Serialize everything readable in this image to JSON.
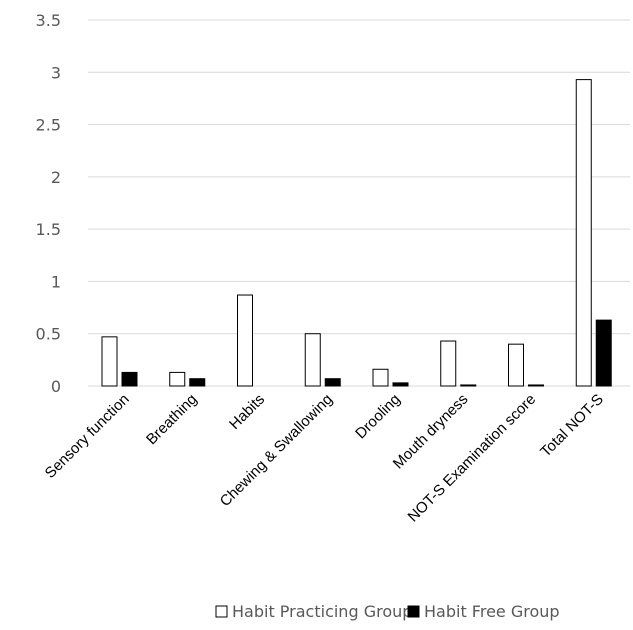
{
  "chart_data": {
    "type": "bar",
    "title": "",
    "xlabel": "",
    "ylabel": "",
    "categories": [
      "Sensory function",
      "Breathing",
      "Habits",
      "Chewing & Swallowing",
      "Drooling",
      "Mouth dryness",
      "NOT-S Examination score",
      "Total NOT-S"
    ],
    "series": [
      {
        "name": "Habit Practicing Group",
        "values": [
          0.47,
          0.13,
          0.87,
          0.5,
          0.16,
          0.43,
          0.4,
          2.93
        ],
        "fill": "#ffffff",
        "stroke": "#000000"
      },
      {
        "name": "Habit Free Group",
        "values": [
          0.13,
          0.07,
          0.0,
          0.07,
          0.03,
          0.01,
          0.01,
          0.63
        ],
        "fill": "#000000",
        "stroke": "#000000"
      }
    ],
    "yticks": [
      "0",
      "0.5",
      "1",
      "1.5",
      "2",
      "2.5",
      "3",
      "3.5"
    ],
    "ylim": [
      0,
      3.5
    ],
    "grid": true,
    "legend_position": "bottom"
  },
  "colors": {
    "grid": "#d9d9d9",
    "axis": "#d9d9d9",
    "tick_text": "#595959"
  }
}
